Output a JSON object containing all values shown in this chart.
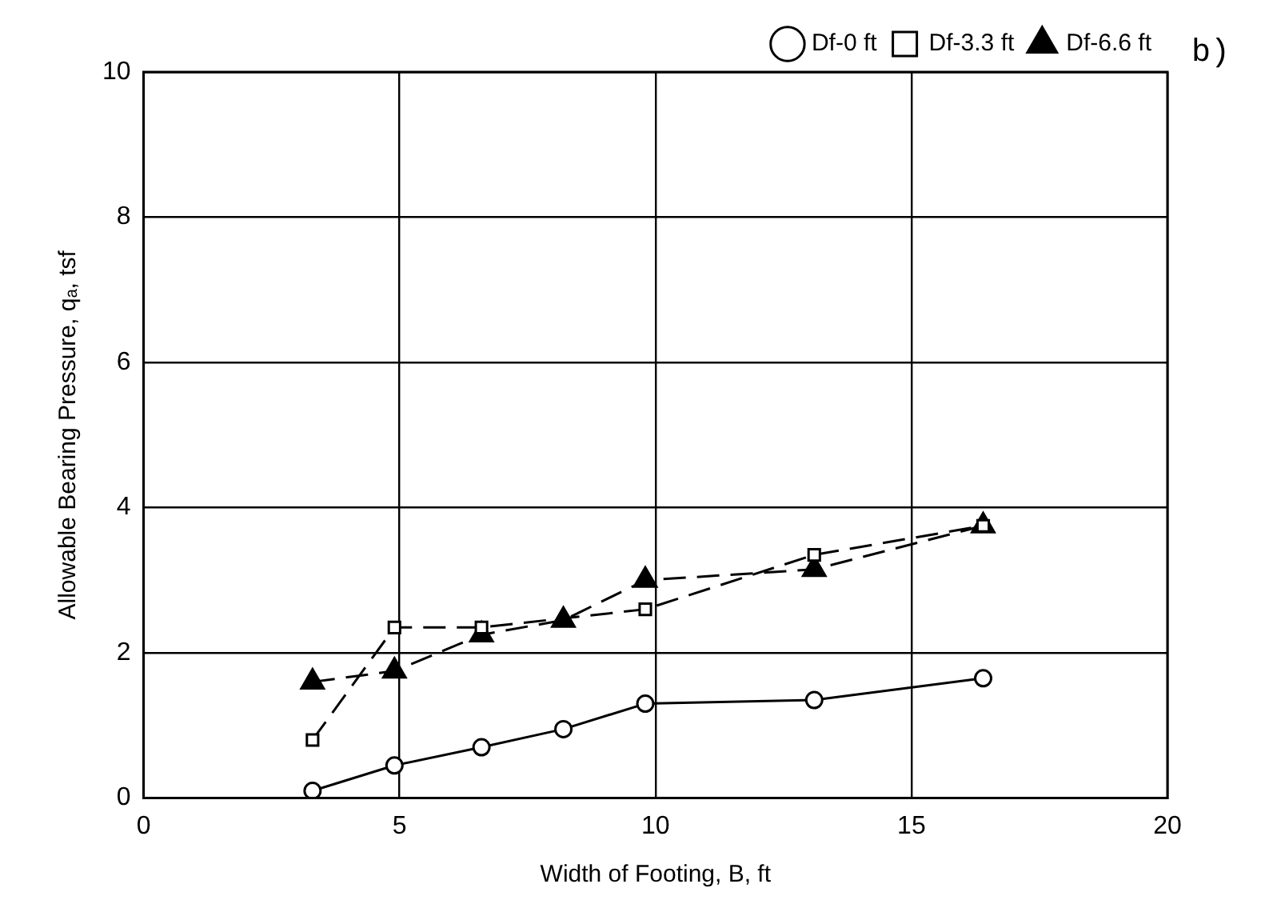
{
  "chart_data": {
    "type": "line",
    "xlabel": "Width of Footing, B, ft",
    "ylabel": "Allowable Bearing Pressure, qₐ, tsf",
    "annotations": [
      "b)"
    ],
    "series": [
      {
        "name": "Df-0 ft",
        "color": "#000000",
        "marker": "circle",
        "line_style": "solid",
        "x": [
          3.3,
          4.9,
          6.6,
          8.2,
          9.8,
          13.1,
          16.4
        ],
        "values": [
          0.1,
          0.45,
          0.7,
          0.95,
          1.3,
          1.35,
          1.65
        ]
      },
      {
        "name": "Df-3.3 ft",
        "color": "#000000",
        "marker": "square",
        "line_style": "dashed",
        "x": [
          3.3,
          4.9,
          6.6,
          9.8,
          13.1,
          16.4
        ],
        "values": [
          0.8,
          2.35,
          2.35,
          2.6,
          3.35,
          3.75
        ]
      },
      {
        "name": "Df-6.6 ft",
        "color": "#000000",
        "marker": "triangle",
        "line_style": "dashed",
        "x": [
          3.3,
          4.9,
          6.6,
          8.2,
          9.8,
          13.1,
          16.4
        ],
        "values": [
          1.6,
          1.75,
          2.25,
          2.45,
          3.0,
          3.15,
          3.75
        ]
      }
    ],
    "xlim": [
      0,
      20
    ],
    "xticks": [
      0,
      5,
      10,
      15,
      20
    ],
    "ylim": [
      0,
      10
    ],
    "yticks": [
      0,
      2,
      4,
      6,
      8,
      10
    ],
    "grid": true,
    "legend": "top right"
  }
}
